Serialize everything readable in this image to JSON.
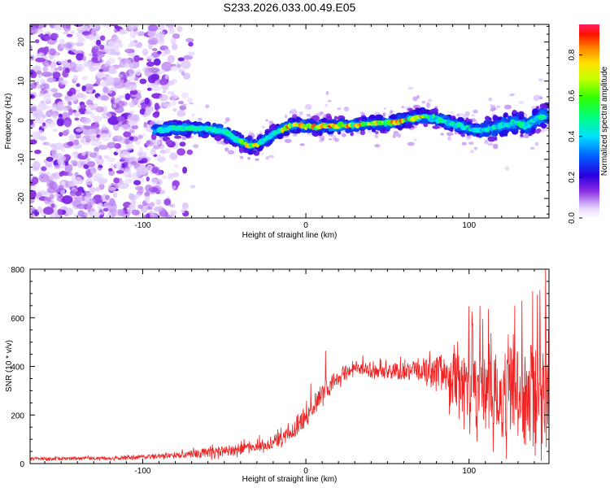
{
  "title": "S233.2026.033.00.49.E05",
  "chart_data": [
    {
      "type": "heatmap",
      "name": "spectrogram",
      "xlabel": "Height of straight line (km)",
      "ylabel": "Frequency (Hz)",
      "xlim": [
        -169,
        149
      ],
      "ylim": [
        -25,
        24.5
      ],
      "xticks": [
        -100,
        0,
        100
      ],
      "yticks": [
        -20,
        -10,
        0,
        10,
        20
      ],
      "colorbar": {
        "label": "Normalized spectral amplitude",
        "range": [
          0.0,
          0.95
        ],
        "ticks": [
          0.0,
          0.2,
          0.4,
          0.6,
          0.8
        ],
        "tick_labels": [
          "0.0",
          "0.2",
          "0.4",
          "0.6",
          "0.8"
        ]
      },
      "ridge": {
        "description": "dominant frequency track (Hz) vs height (km)",
        "x": [
          -90,
          -80,
          -70,
          -60,
          -50,
          -40,
          -34,
          -30,
          -25,
          -20,
          -15,
          -10,
          -5,
          0,
          5,
          10,
          20,
          30,
          40,
          50,
          55,
          60,
          65,
          70,
          75,
          80,
          85,
          90,
          95,
          100,
          105,
          110,
          115,
          120,
          125,
          130,
          135,
          140,
          145
        ],
        "y": [
          -2.5,
          -2,
          -2,
          -2.2,
          -3,
          -5.5,
          -6.5,
          -6.3,
          -5,
          -3.5,
          -2.5,
          -1.5,
          -1.2,
          -1.5,
          -1.8,
          -1.5,
          -1.5,
          -1.3,
          -0.8,
          -0.8,
          -0.5,
          0,
          0.5,
          1,
          0.8,
          0.3,
          -0.3,
          -1,
          -1.5,
          -2.2,
          -2.6,
          -2.5,
          -2,
          -1.2,
          -1,
          -0.5,
          -1.5,
          0,
          1
        ]
      },
      "noise_region_km": [
        -169,
        -78
      ]
    },
    {
      "type": "line",
      "name": "snr",
      "xlabel": "Height of straight line (km)",
      "ylabel": "SNR (10 * v/v)",
      "xlim": [
        -169,
        149
      ],
      "ylim": [
        0,
        800
      ],
      "xticks": [
        -100,
        0,
        100
      ],
      "yticks": [
        0,
        200,
        400,
        600,
        800
      ],
      "color": "#ee2222",
      "envelope": {
        "description": "approximate baseline SNR and noise amplitude along height",
        "x": [
          -169,
          -120,
          -90,
          -80,
          -60,
          -40,
          -20,
          -10,
          0,
          5,
          10,
          15,
          20,
          25,
          30,
          40,
          50,
          60,
          70,
          80,
          90,
          100,
          110,
          120,
          130,
          140,
          149
        ],
        "base": [
          20,
          22,
          30,
          35,
          45,
          60,
          90,
          120,
          190,
          250,
          285,
          320,
          355,
          380,
          390,
          385,
          380,
          380,
          380,
          378,
          350,
          320,
          300,
          290,
          280,
          270,
          260
        ],
        "amplitude": [
          8,
          8,
          12,
          15,
          25,
          30,
          35,
          40,
          50,
          55,
          60,
          50,
          40,
          35,
          40,
          40,
          40,
          45,
          50,
          80,
          130,
          170,
          200,
          230,
          250,
          270,
          280
        ]
      },
      "spikes": [
        {
          "x": 12,
          "y": 465
        },
        {
          "x": 3,
          "y": 330
        },
        {
          "x": 35,
          "y": 445
        },
        {
          "x": 58,
          "y": 440
        },
        {
          "x": 102,
          "y": 570
        },
        {
          "x": 112,
          "y": 635
        },
        {
          "x": 128,
          "y": 650
        },
        {
          "x": 139,
          "y": 710
        },
        {
          "x": 147,
          "y": 800
        }
      ]
    }
  ]
}
